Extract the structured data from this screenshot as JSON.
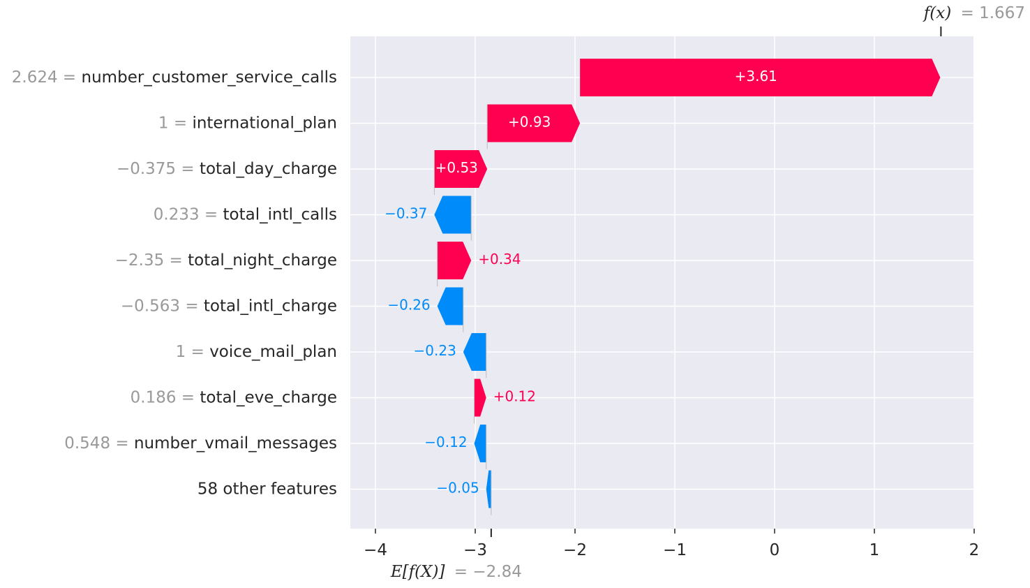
{
  "chart_data": {
    "type": "waterfall",
    "base_value": -2.84,
    "final_value": 1.667,
    "base_value_label": "= −2.84",
    "final_value_label": "= 1.667",
    "base_value_prefix": "E[f(X)]",
    "final_value_prefix": "f(x)",
    "x_ticks": [
      -4,
      -3,
      -2,
      -1,
      0,
      1,
      2
    ],
    "x_tick_labels": [
      "−4",
      "−3",
      "−2",
      "−1",
      "0",
      "1",
      "2"
    ],
    "xlim": [
      -4.25,
      2.0
    ],
    "features": [
      {
        "value": "2.624",
        "name": "number_customer_service_calls",
        "shap": 3.61,
        "label": "+3.61"
      },
      {
        "value": "1",
        "name": "international_plan",
        "shap": 0.93,
        "label": "+0.93"
      },
      {
        "value": "−0.375",
        "name": "total_day_charge",
        "shap": 0.53,
        "label": "+0.53"
      },
      {
        "value": "0.233",
        "name": "total_intl_calls",
        "shap": -0.37,
        "label": "−0.37"
      },
      {
        "value": "−2.35",
        "name": "total_night_charge",
        "shap": 0.34,
        "label": "+0.34"
      },
      {
        "value": "−0.563",
        "name": "total_intl_charge",
        "shap": -0.26,
        "label": "−0.26"
      },
      {
        "value": "1",
        "name": "voice_mail_plan",
        "shap": -0.23,
        "label": "−0.23"
      },
      {
        "value": "0.186",
        "name": "total_eve_charge",
        "shap": 0.12,
        "label": "+0.12"
      },
      {
        "value": "0.548",
        "name": "number_vmail_messages",
        "shap": -0.12,
        "label": "−0.12"
      },
      {
        "value": "",
        "name": "58 other features",
        "shap": -0.05,
        "label": "−0.05"
      }
    ],
    "colors": {
      "positive": "#ff0051",
      "negative": "#008bfb",
      "background": "#eaeaf2",
      "grid": "#ffffff",
      "value_text": "#999999",
      "name_text": "#262626"
    }
  }
}
